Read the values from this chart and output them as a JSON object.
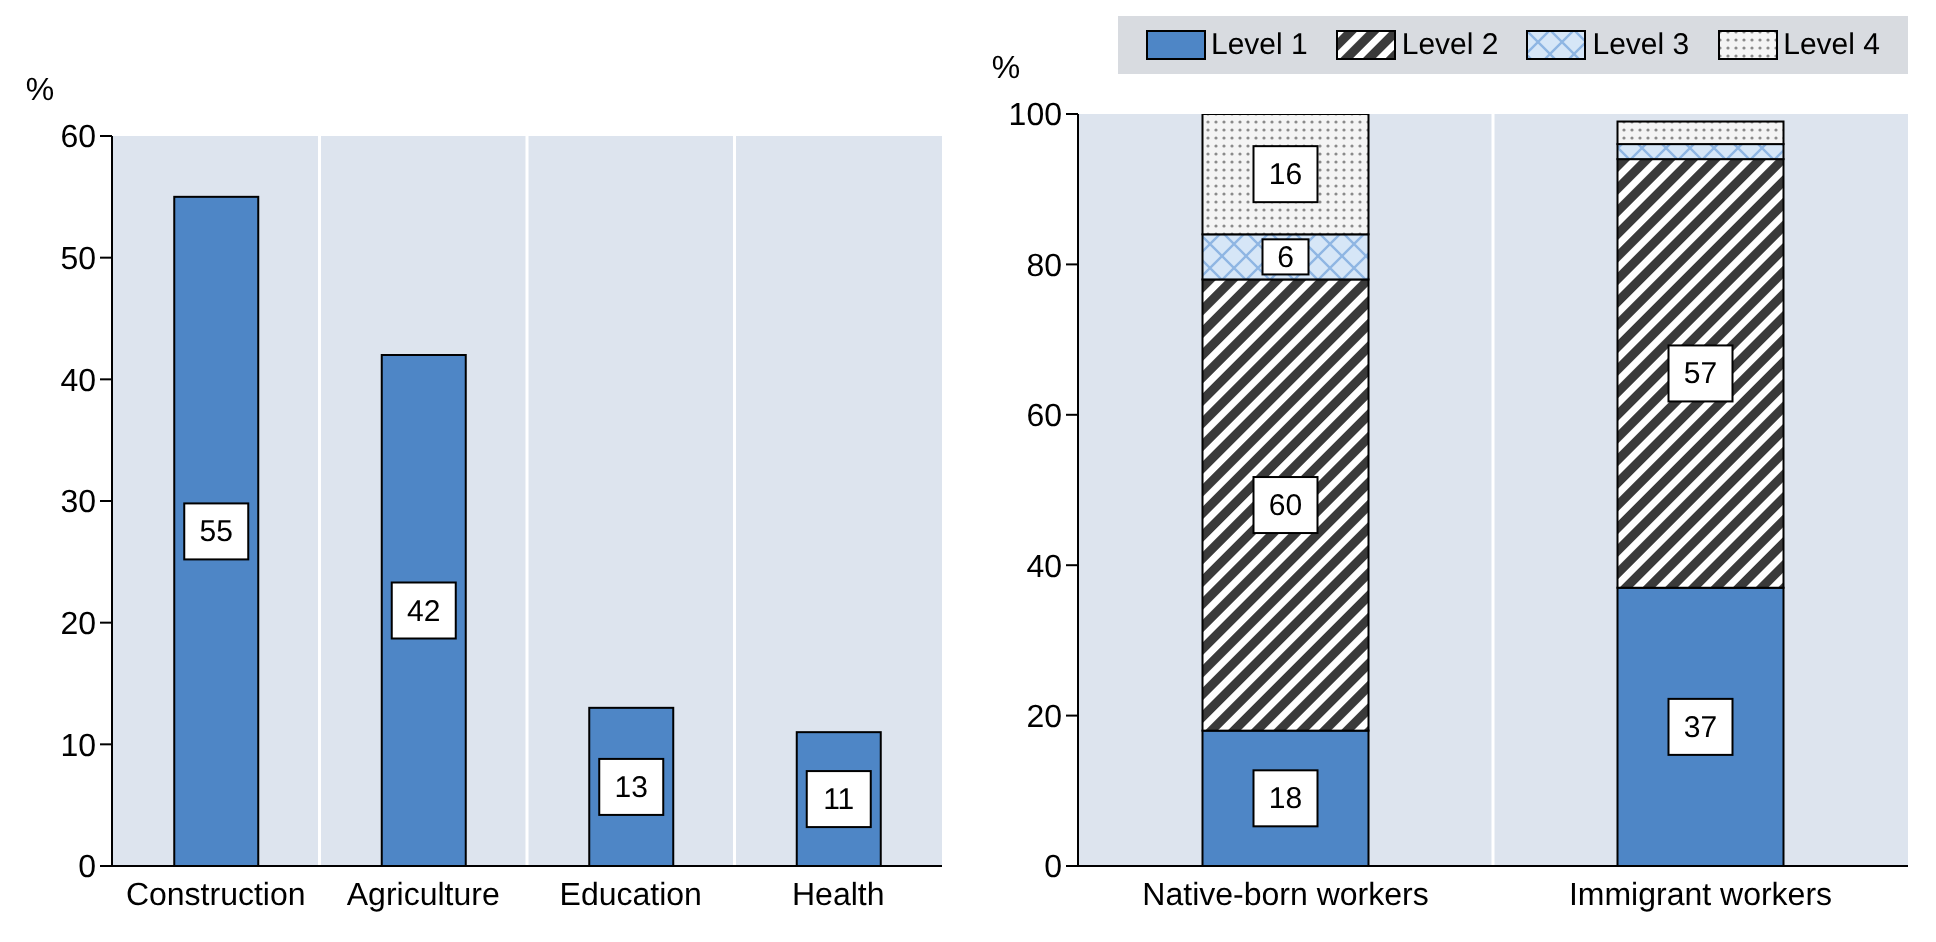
{
  "chart_data": [
    {
      "type": "bar",
      "categories": [
        "Construction",
        "Agriculture",
        "Education",
        "Health"
      ],
      "values": [
        55,
        42,
        13,
        11
      ],
      "color": "#4e86c6",
      "ylim": [
        0,
        60
      ],
      "yticks": [
        0,
        10,
        20,
        30,
        40,
        50,
        60
      ],
      "ylabel": "%",
      "data_labels": true,
      "grid": "x"
    },
    {
      "type": "bar",
      "stacked": true,
      "categories": [
        "Native-born workers",
        "Immigrant workers"
      ],
      "series": [
        {
          "name": "Level 1",
          "color": "#4e86c6",
          "values": [
            18,
            37
          ],
          "value_labels": [
            "18",
            "37"
          ]
        },
        {
          "name": "Level 2",
          "color": "#3a3a3a",
          "values": [
            60,
            57
          ],
          "value_labels": [
            "60",
            "57"
          ]
        },
        {
          "name": "Level 3",
          "color": "#d6e6f7",
          "values": [
            6,
            2
          ],
          "value_labels": [
            "6",
            null
          ]
        },
        {
          "name": "Level 4",
          "color": "#f4f4f4",
          "values": [
            16,
            3
          ],
          "value_labels": [
            "16",
            null
          ]
        }
      ],
      "ylim": [
        0,
        100
      ],
      "yticks": [
        0,
        20,
        40,
        60,
        80,
        100
      ],
      "ylabel": "%",
      "grid": "x",
      "legend": "top"
    }
  ]
}
